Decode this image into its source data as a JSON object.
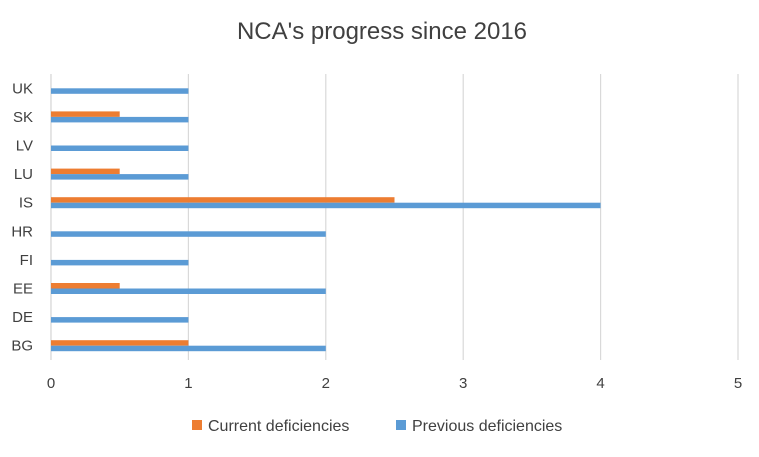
{
  "chart_data": {
    "type": "bar",
    "orientation": "horizontal",
    "title": "NCA's progress since 2016",
    "categories": [
      "BG",
      "DE",
      "EE",
      "FI",
      "HR",
      "IS",
      "LU",
      "LV",
      "SK",
      "UK"
    ],
    "series": [
      {
        "name": "Current deficiencies",
        "color": "#ED7D31",
        "values": [
          1,
          0,
          0.5,
          0,
          0,
          2.5,
          0.5,
          0,
          0.5,
          0
        ]
      },
      {
        "name": "Previous deficiencies",
        "color": "#5B9BD5",
        "values": [
          2,
          1,
          2,
          1,
          2,
          4,
          1,
          1,
          1,
          1
        ]
      }
    ],
    "xlim": [
      0,
      5
    ],
    "x_ticks": [
      "0",
      "1",
      "2",
      "3",
      "4",
      "5"
    ],
    "grid": true,
    "legend_position": "bottom",
    "gridline_color": "#D9D9D9",
    "text_color": "#404040"
  }
}
